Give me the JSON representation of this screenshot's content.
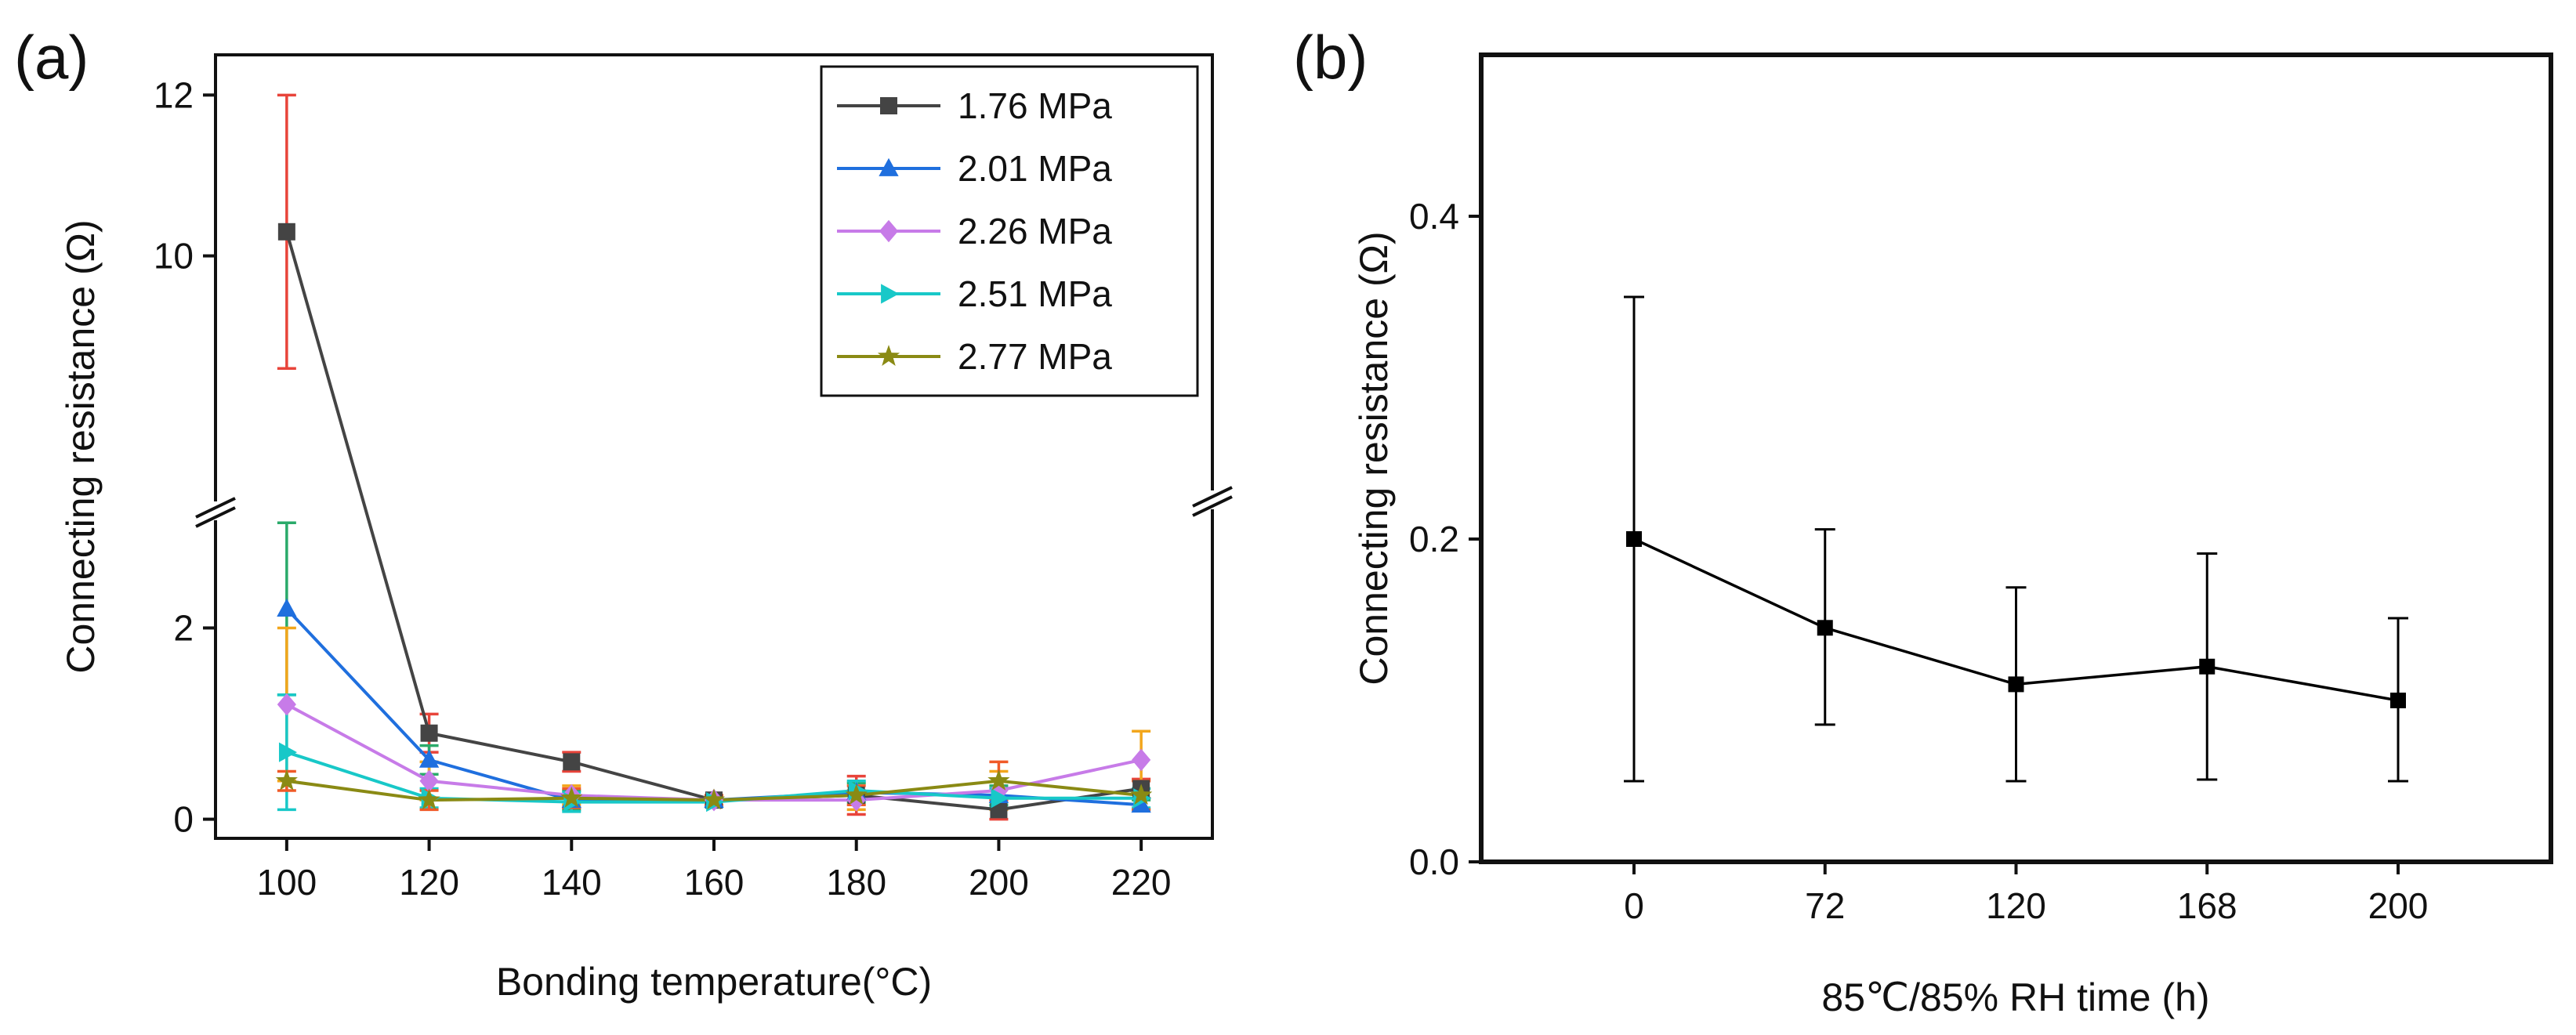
{
  "chart_data": [
    {
      "type": "line",
      "panel_label": "(a)",
      "title": "",
      "xlabel": "Bonding temperature(°C)",
      "ylabel": "Connecting resistance (Ω)",
      "x": [
        100,
        120,
        140,
        160,
        180,
        200,
        220
      ],
      "xticks": [
        100,
        120,
        140,
        160,
        180,
        200,
        220
      ],
      "xlim": [
        90,
        230
      ],
      "y_lower_range": [
        -0.2,
        3.2
      ],
      "y_upper_range": [
        6.8,
        12.5
      ],
      "yticks": [
        0,
        2,
        10,
        12
      ],
      "axis_break": "between 3.2 and 6.8",
      "legend_position": "top-right",
      "series": [
        {
          "name": "1.76 MPa",
          "color": "#444444",
          "marker": "square",
          "values": [
            10.3,
            0.9,
            0.6,
            0.2,
            0.25,
            0.1,
            0.32
          ],
          "err": [
            1.7,
            0.2,
            0.1,
            0.05,
            0.2,
            0.1,
            0.1
          ],
          "err_color": "#e8443a"
        },
        {
          "name": "2.01 MPa",
          "color": "#1f6fde",
          "marker": "triangle",
          "values": [
            2.2,
            0.62,
            0.2,
            0.2,
            0.28,
            0.25,
            0.15
          ],
          "err": [
            0.9,
            0.15,
            0.1,
            0.05,
            0.1,
            0.1,
            0.05
          ],
          "err_color": "#2aaa6a"
        },
        {
          "name": "2.26 MPa",
          "color": "#c77be8",
          "marker": "diamond",
          "values": [
            1.2,
            0.4,
            0.25,
            0.2,
            0.2,
            0.3,
            0.62
          ],
          "err": [
            0.8,
            0.2,
            0.1,
            0.05,
            0.1,
            0.2,
            0.3
          ],
          "err_color": "#f2a61c"
        },
        {
          "name": "2.51 MPa",
          "color": "#18c8c8",
          "marker": "triangle-right",
          "values": [
            0.7,
            0.22,
            0.18,
            0.18,
            0.3,
            0.22,
            0.22
          ],
          "err": [
            0.6,
            0.1,
            0.1,
            0.05,
            0.1,
            0.1,
            0.1
          ],
          "err_color": "#18c8c8"
        },
        {
          "name": "2.77 MPa",
          "color": "#8a8a14",
          "marker": "star",
          "values": [
            0.4,
            0.2,
            0.22,
            0.2,
            0.25,
            0.4,
            0.25
          ],
          "err": [
            0.1,
            0.1,
            0.1,
            0.05,
            0.1,
            0.2,
            0.15
          ],
          "err_color": "#f05a28"
        }
      ]
    },
    {
      "type": "line",
      "panel_label": "(b)",
      "title": "",
      "xlabel": "85℃/85% RH time (h)",
      "ylabel": "Connecting resistance (Ω)",
      "categories": [
        "0",
        "72",
        "120",
        "168",
        "200"
      ],
      "xlim": [
        -0.8,
        4.8
      ],
      "ylim": [
        0,
        0.5
      ],
      "yticks": [
        "0.0",
        "0.2",
        "0.4"
      ],
      "series": [
        {
          "name": "resistance",
          "color": "#000000",
          "marker": "square",
          "values": [
            0.2,
            0.145,
            0.11,
            0.121,
            0.1
          ],
          "err_low": [
            0.05,
            0.085,
            0.05,
            0.051,
            0.05
          ],
          "err_high": [
            0.35,
            0.206,
            0.17,
            0.191,
            0.151
          ]
        }
      ]
    }
  ]
}
